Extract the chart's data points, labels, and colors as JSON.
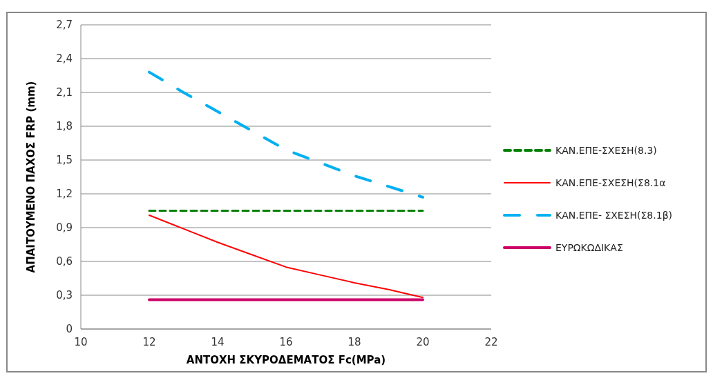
{
  "chart_data": {
    "type": "line",
    "xlabel": "ΑΝΤΟΧΗ ΣΚΥΡΟΔΕΜΑΤΟΣ Fc(MPa)",
    "ylabel": "ΑΠΑΙΤΟΥΜΕΝΟ ΠΑΧΟΣ FRP (mm)",
    "xlim": [
      10,
      22
    ],
    "xticks": [
      10,
      12,
      14,
      16,
      18,
      20,
      22
    ],
    "ylim": [
      0,
      2.7
    ],
    "yticks": [
      0,
      {
        "value": 0.3,
        "label": "0,3"
      },
      {
        "value": 0.6,
        "label": "0,6"
      },
      {
        "value": 0.9,
        "label": "0,9"
      },
      {
        "value": 1.2,
        "label": "1,2"
      },
      {
        "value": 1.5,
        "label": "1,5"
      },
      {
        "value": 1.8,
        "label": "1,8"
      },
      {
        "value": 2.1,
        "label": "2,1"
      },
      {
        "value": 2.4,
        "label": "2,4"
      },
      {
        "value": 2.7,
        "label": "2,7"
      }
    ],
    "grid": "y",
    "legend": "right",
    "marker": "none",
    "series": [
      {
        "name": "ΚΑΝ.ΕΠΕ-ΣΧΕΣΗ(8.3)",
        "color": "#008000",
        "line_style": "dashed",
        "x": [
          12,
          20
        ],
        "values": [
          1.05,
          1.05
        ]
      },
      {
        "name": "ΚΑΝ.ΕΠΕ-ΣΧΕΣΗ(Σ8.1α",
        "color": "#ff0000",
        "line_style": "solid",
        "x": [
          12,
          13,
          14,
          15,
          16,
          17,
          18,
          19,
          20
        ],
        "values": [
          1.01,
          0.89,
          0.77,
          0.66,
          0.55,
          0.48,
          0.41,
          0.35,
          0.28
        ]
      },
      {
        "name": "ΚΑΝ.ΕΠΕ- ΣΧΕΣΗ(Σ8.1β)",
        "color": "#00b0f0",
        "line_style": "dashed",
        "x": [
          12,
          13,
          14,
          16,
          18,
          20
        ],
        "values": [
          2.28,
          2.1,
          1.93,
          1.59,
          1.36,
          1.17
        ]
      },
      {
        "name": "ΕΥΡΩΚΩΔΙΚΑΣ",
        "color": "#cc0066",
        "line_style": "solid",
        "x": [
          12,
          20
        ],
        "values": [
          0.26,
          0.26
        ]
      }
    ]
  }
}
